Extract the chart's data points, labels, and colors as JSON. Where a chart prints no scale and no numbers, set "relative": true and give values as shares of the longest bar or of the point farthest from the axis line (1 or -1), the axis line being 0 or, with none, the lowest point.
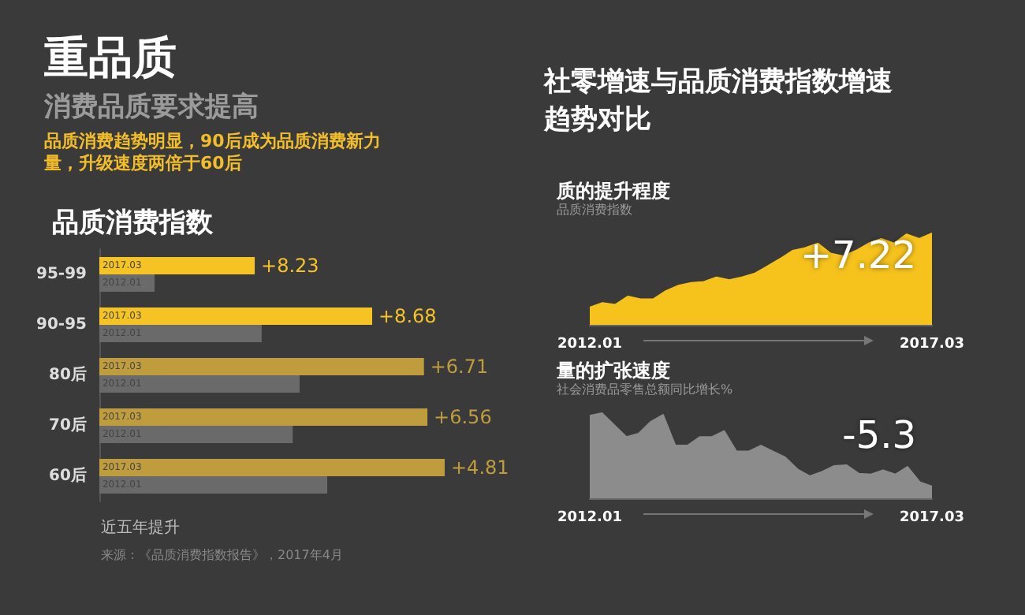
{
  "chart_data": [
    {
      "type": "other",
      "title": "重品质",
      "subtitle": "消费品质要求提高",
      "annotations": [
        "品质消费趋势明显，90后成为品质消费新力量，升级速度两倍于60后"
      ]
    },
    {
      "type": "bar",
      "orientation": "horizontal",
      "relative": true,
      "title": "品质消费指数",
      "categories": [
        "95-99",
        "90-95",
        "80后",
        "70后",
        "60后"
      ],
      "series": [
        {
          "name": "2017.03",
          "colors": [
            "#f6c325",
            "#f6c325",
            "#bf9d3e",
            "#bf9d3e",
            "#bf9d3e"
          ],
          "values": [
            0.45,
            0.79,
            0.94,
            0.95,
            1.0
          ]
        },
        {
          "name": "2012.01",
          "color": "#6a6a6a",
          "values": [
            0.16,
            0.47,
            0.58,
            0.56,
            0.66
          ]
        }
      ],
      "annotations": [
        {
          "text": "+8.23",
          "x": 0.45,
          "y": "95-99"
        },
        {
          "text": "+8.68",
          "x": 0.79,
          "y": "90-95"
        },
        {
          "text": "+6.71",
          "x": 0.94,
          "y": "80后"
        },
        {
          "text": "+6.56",
          "x": 0.95,
          "y": "70后"
        },
        {
          "text": "+4.81",
          "x": 1.0,
          "y": "60后"
        },
        "近五年提升",
        "来源：《品质消费指数报告》，2017年4月"
      ]
    },
    {
      "type": "other",
      "title": "社零增速与品质消费指数增速趋势对比"
    },
    {
      "type": "area",
      "relative": true,
      "title": "质的提升程度",
      "subtitle": "品质消费指数",
      "categories": [
        "2012.01",
        null,
        null,
        null,
        null,
        null,
        null,
        null,
        null,
        null,
        null,
        null,
        null,
        null,
        null,
        null,
        null,
        null,
        null,
        null,
        null,
        null,
        null,
        null,
        null,
        null,
        null,
        "2017.03"
      ],
      "series": [
        {
          "color": "#f6c21c",
          "values": [
            0.19,
            0.24,
            0.22,
            0.31,
            0.28,
            0.28,
            0.37,
            0.43,
            0.46,
            0.47,
            0.52,
            0.49,
            0.52,
            0.56,
            0.64,
            0.72,
            0.81,
            0.84,
            0.89,
            0.78,
            0.75,
            0.81,
            0.89,
            0.94,
            0.89,
            0.99,
            0.94,
            1.0
          ]
        }
      ],
      "annotations": [
        "+7.22"
      ]
    },
    {
      "type": "area",
      "relative": true,
      "title": "量的扩张速度",
      "subtitle": "社会消费品零售总额同比增长%",
      "categories": [
        "2012.01",
        null,
        null,
        null,
        null,
        null,
        null,
        null,
        null,
        null,
        null,
        null,
        null,
        null,
        null,
        null,
        null,
        null,
        null,
        null,
        null,
        null,
        null,
        null,
        null,
        null,
        null,
        null,
        "2017.03"
      ],
      "series": [
        {
          "color": "#8c8c8c",
          "values": [
            0.97,
            1.0,
            0.86,
            0.72,
            0.76,
            0.9,
            0.98,
            0.62,
            0.62,
            0.72,
            0.72,
            0.79,
            0.55,
            0.55,
            0.62,
            0.55,
            0.48,
            0.34,
            0.26,
            0.31,
            0.38,
            0.39,
            0.29,
            0.28,
            0.33,
            0.28,
            0.37,
            0.19,
            0.14
          ]
        }
      ],
      "annotations": [
        "-5.3"
      ]
    }
  ]
}
